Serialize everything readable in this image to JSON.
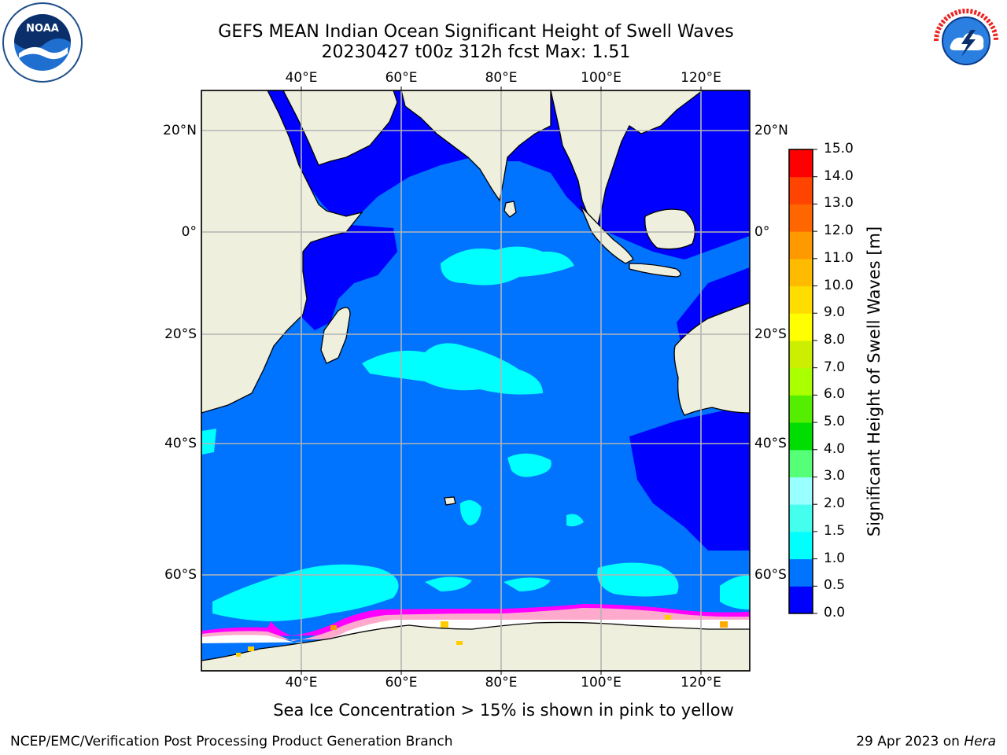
{
  "header": {
    "title_line1": "GEFS MEAN Indian Ocean Significant Height of Swell Waves",
    "title_line2": "20230427 t00z 312h fcst   Max: 1.51"
  },
  "map": {
    "lon_labels": [
      "40°E",
      "60°E",
      "80°E",
      "100°E",
      "120°E"
    ],
    "lat_labels": [
      "20°N",
      "0°",
      "20°S",
      "40°S",
      "60°S"
    ],
    "gridlines": true,
    "land_color": "#efefde",
    "ice_colors": [
      "#ff00ff",
      "#ff77cc",
      "#ffaacc",
      "#ffcc88"
    ]
  },
  "colorbar": {
    "title": "Significant Height of Swell Waves [m]",
    "tick_labels": [
      "0.0",
      "0.5",
      "1.0",
      "1.5",
      "2.0",
      "3.0",
      "4.0",
      "5.0",
      "6.0",
      "7.0",
      "8.0",
      "9.0",
      "10.0",
      "11.0",
      "12.0",
      "13.0",
      "14.0",
      "15.0"
    ],
    "colors": [
      "#0000ff",
      "#0073ff",
      "#00ffff",
      "#44ffee",
      "#99ffff",
      "#55ff77",
      "#00dd00",
      "#55ee00",
      "#aaff00",
      "#ccee00",
      "#ffff00",
      "#ffdd00",
      "#ffbb00",
      "#ff9900",
      "#ff6600",
      "#ff4400",
      "#ff0000"
    ]
  },
  "logos": {
    "left": {
      "name": "noaa-logo",
      "text": "NOAA"
    },
    "right": {
      "name": "nws-logo",
      "text": "NATIONAL WEATHER SERVICE"
    }
  },
  "footer": {
    "note": "Sea Ice Concentration > 15% is shown in pink to yellow",
    "credit": "NCEP/EMC/Verification Post Processing Product Generation Branch",
    "date": "29 Apr 2023 on",
    "machine": "Hera"
  }
}
